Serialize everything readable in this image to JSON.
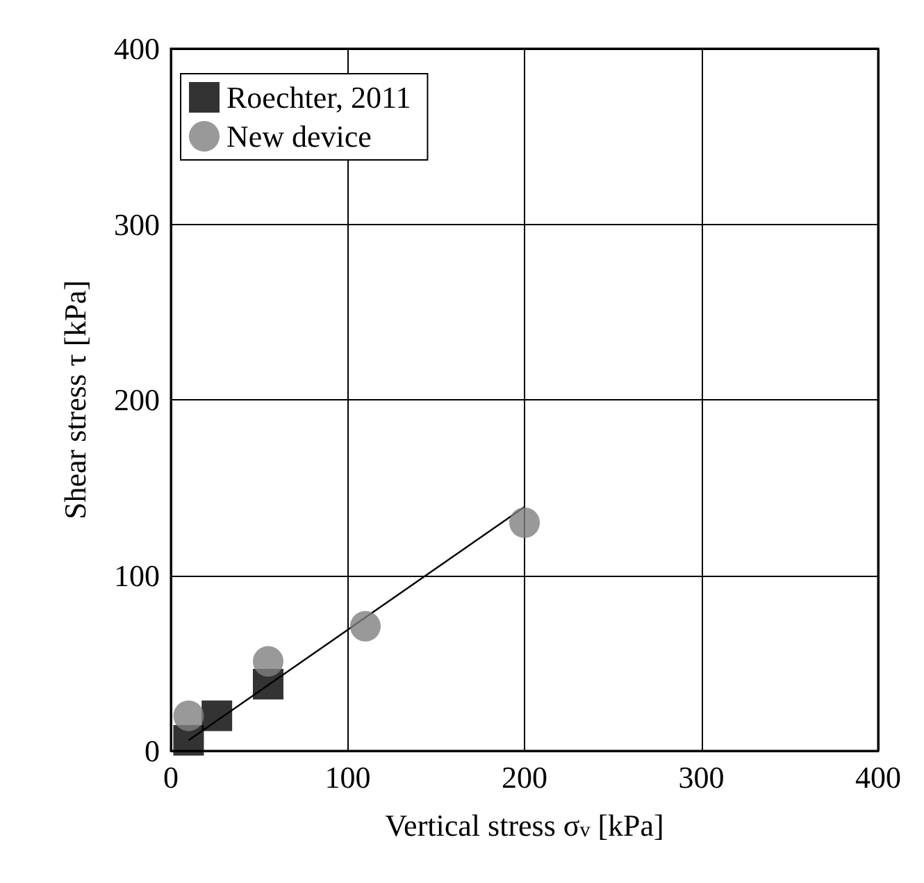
{
  "chart_data": {
    "type": "scatter",
    "xlabel": "Vertical stress σ$_{v}$ [kPa]",
    "ylabel": "Shear stress τ [kPa]",
    "xlim": [
      0,
      400
    ],
    "xticks": [
      0,
      100,
      200,
      300,
      400
    ],
    "ylim": [
      0,
      400
    ],
    "yticks": [
      0,
      100,
      200,
      300,
      400
    ],
    "grid": true,
    "legend": "top left",
    "series": [
      {
        "name": "Roechter, 2011",
        "color": "#000000",
        "marker": "square",
        "x": [
          10,
          26,
          55
        ],
        "values": [
          6,
          20,
          38
        ]
      },
      {
        "name": "New device",
        "color": "#808080",
        "marker": "circle",
        "x": [
          10,
          55,
          110,
          200
        ],
        "values": [
          20,
          51,
          71,
          130
        ]
      },
      {
        "type": "line",
        "color": "#000000",
        "marker": "none",
        "x": [
          10,
          200
        ],
        "values": [
          6,
          139
        ]
      }
    ]
  }
}
